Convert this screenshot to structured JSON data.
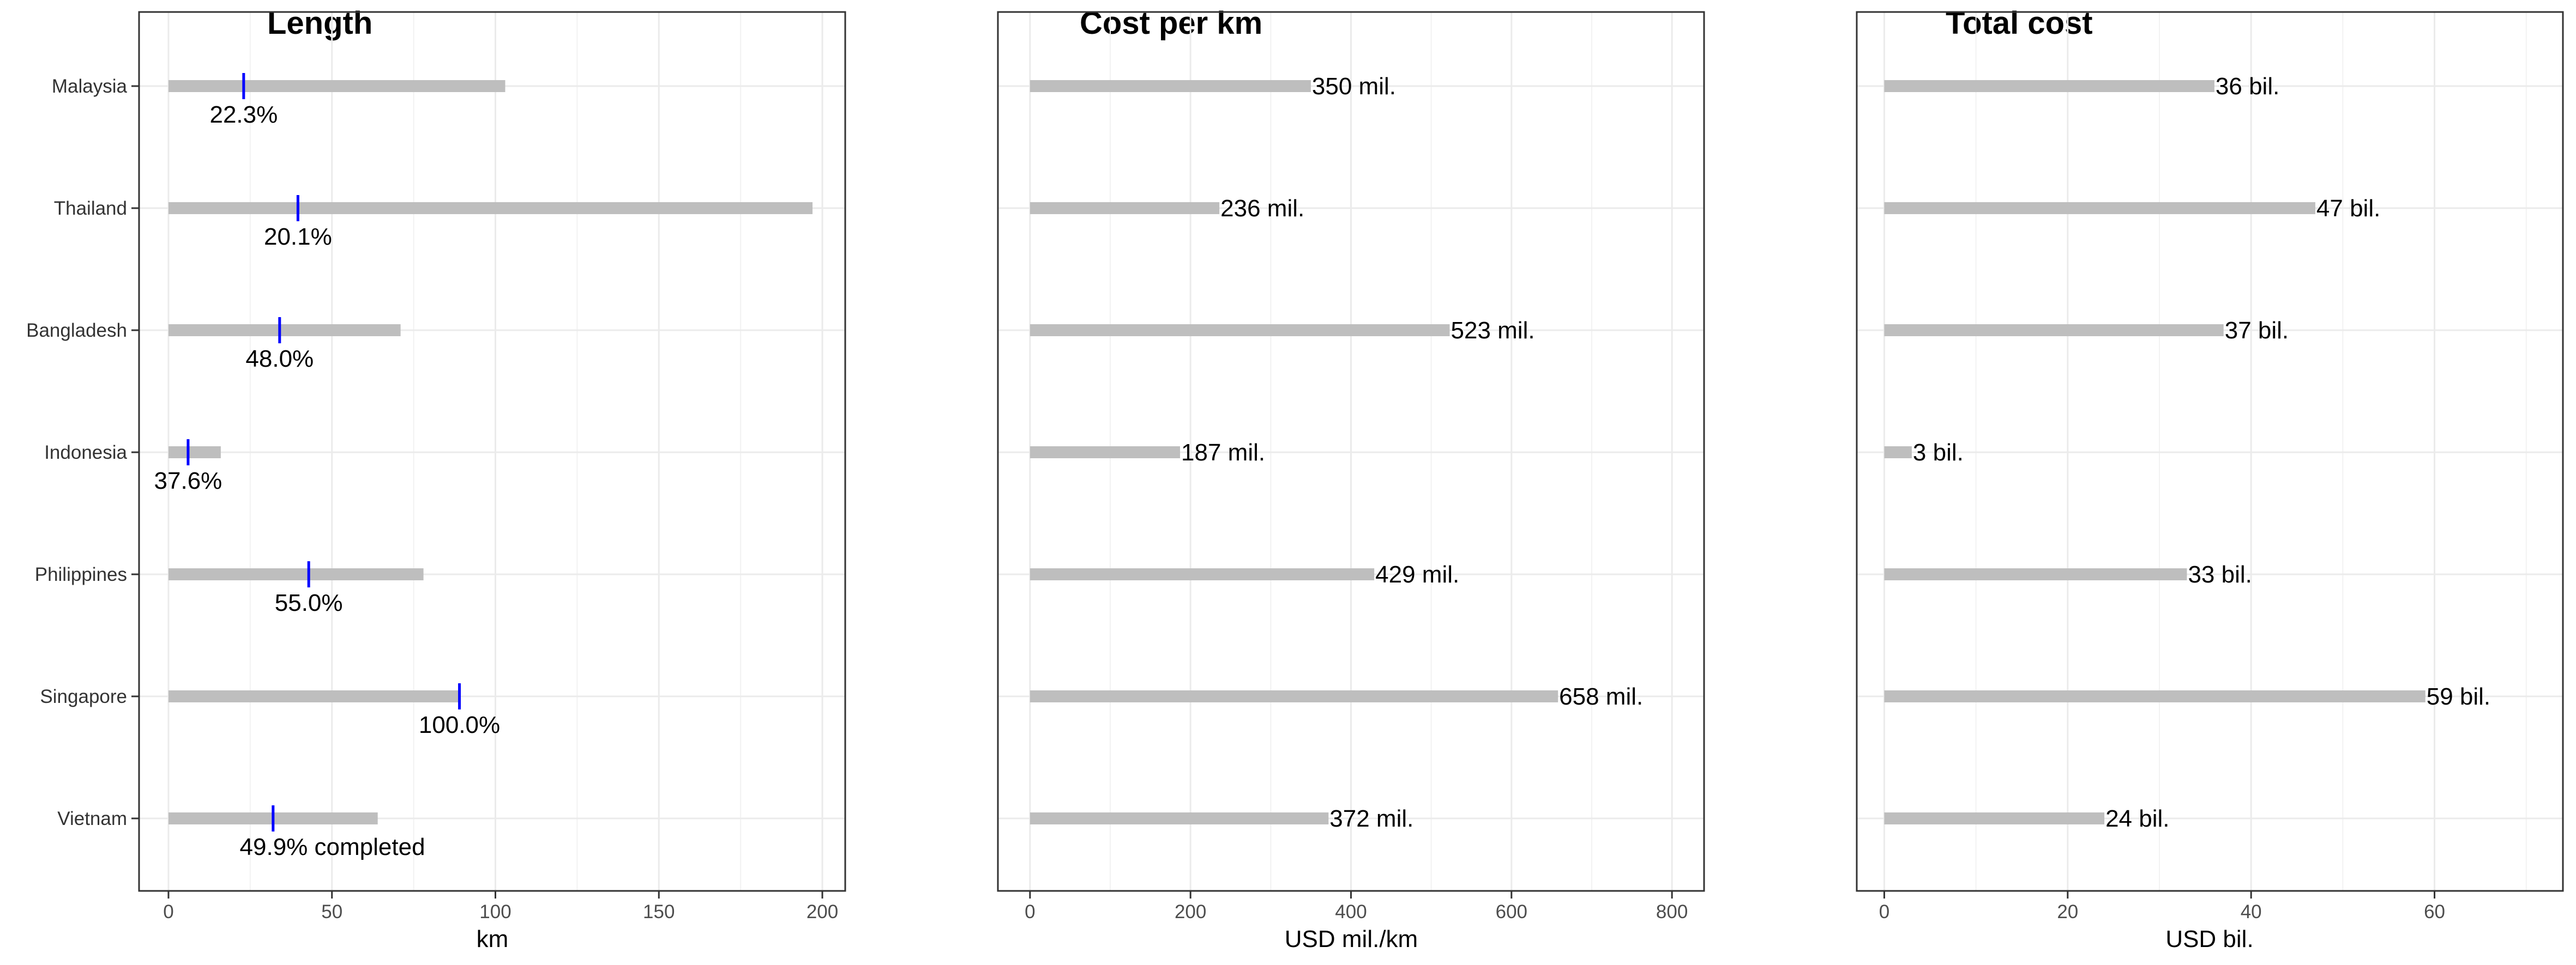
{
  "chart_data": [
    {
      "type": "bar",
      "title": "Length",
      "xlabel": "km",
      "ylabel": "",
      "xlim": [
        -9,
        207
      ],
      "xticks": [
        0,
        50,
        100,
        150,
        200
      ],
      "grid": true,
      "categories": [
        "Malaysia",
        "Thailand",
        "Bangladesh",
        "Indonesia",
        "Philippines",
        "Singapore",
        "Vietnam"
      ],
      "values": [
        103,
        197,
        71,
        16,
        78,
        89,
        64
      ],
      "completed_values": [
        23,
        39.6,
        34,
        6,
        42.9,
        89,
        32
      ],
      "data_labels": [
        "22.3%",
        "20.1%",
        "48.0%",
        "37.6%",
        "55.0%",
        "100.0%",
        "49.9% completed"
      ],
      "colors": {
        "bar": "#bebebe",
        "marker": "#0000ff"
      }
    },
    {
      "type": "bar",
      "title": "Cost per km",
      "xlabel": "USD mil./km",
      "ylabel": "",
      "xlim": [
        -40,
        840
      ],
      "xticks": [
        0,
        200,
        400,
        600,
        800
      ],
      "grid": true,
      "categories": [
        "Malaysia",
        "Thailand",
        "Bangladesh",
        "Indonesia",
        "Philippines",
        "Singapore",
        "Vietnam"
      ],
      "values": [
        350,
        236,
        523,
        187,
        429,
        658,
        372
      ],
      "data_labels": [
        "350 mil.",
        "236 mil.",
        "523 mil.",
        "187 mil.",
        "429 mil.",
        "658 mil.",
        "372 mil."
      ],
      "colors": {
        "bar": "#bebebe"
      }
    },
    {
      "type": "bar",
      "title": "Total cost",
      "xlabel": "USD bil.",
      "ylabel": "",
      "xlim": [
        -3,
        74
      ],
      "xticks": [
        0,
        20,
        40,
        60
      ],
      "grid": true,
      "categories": [
        "Malaysia",
        "Thailand",
        "Bangladesh",
        "Indonesia",
        "Philippines",
        "Singapore",
        "Vietnam"
      ],
      "values": [
        36,
        47,
        37,
        3,
        33,
        59,
        24
      ],
      "data_labels": [
        "36 bil.",
        "47 bil.",
        "37 bil.",
        "3 bil.",
        "33 bil.",
        "59 bil.",
        "24 bil."
      ],
      "colors": {
        "bar": "#bebebe"
      }
    }
  ]
}
